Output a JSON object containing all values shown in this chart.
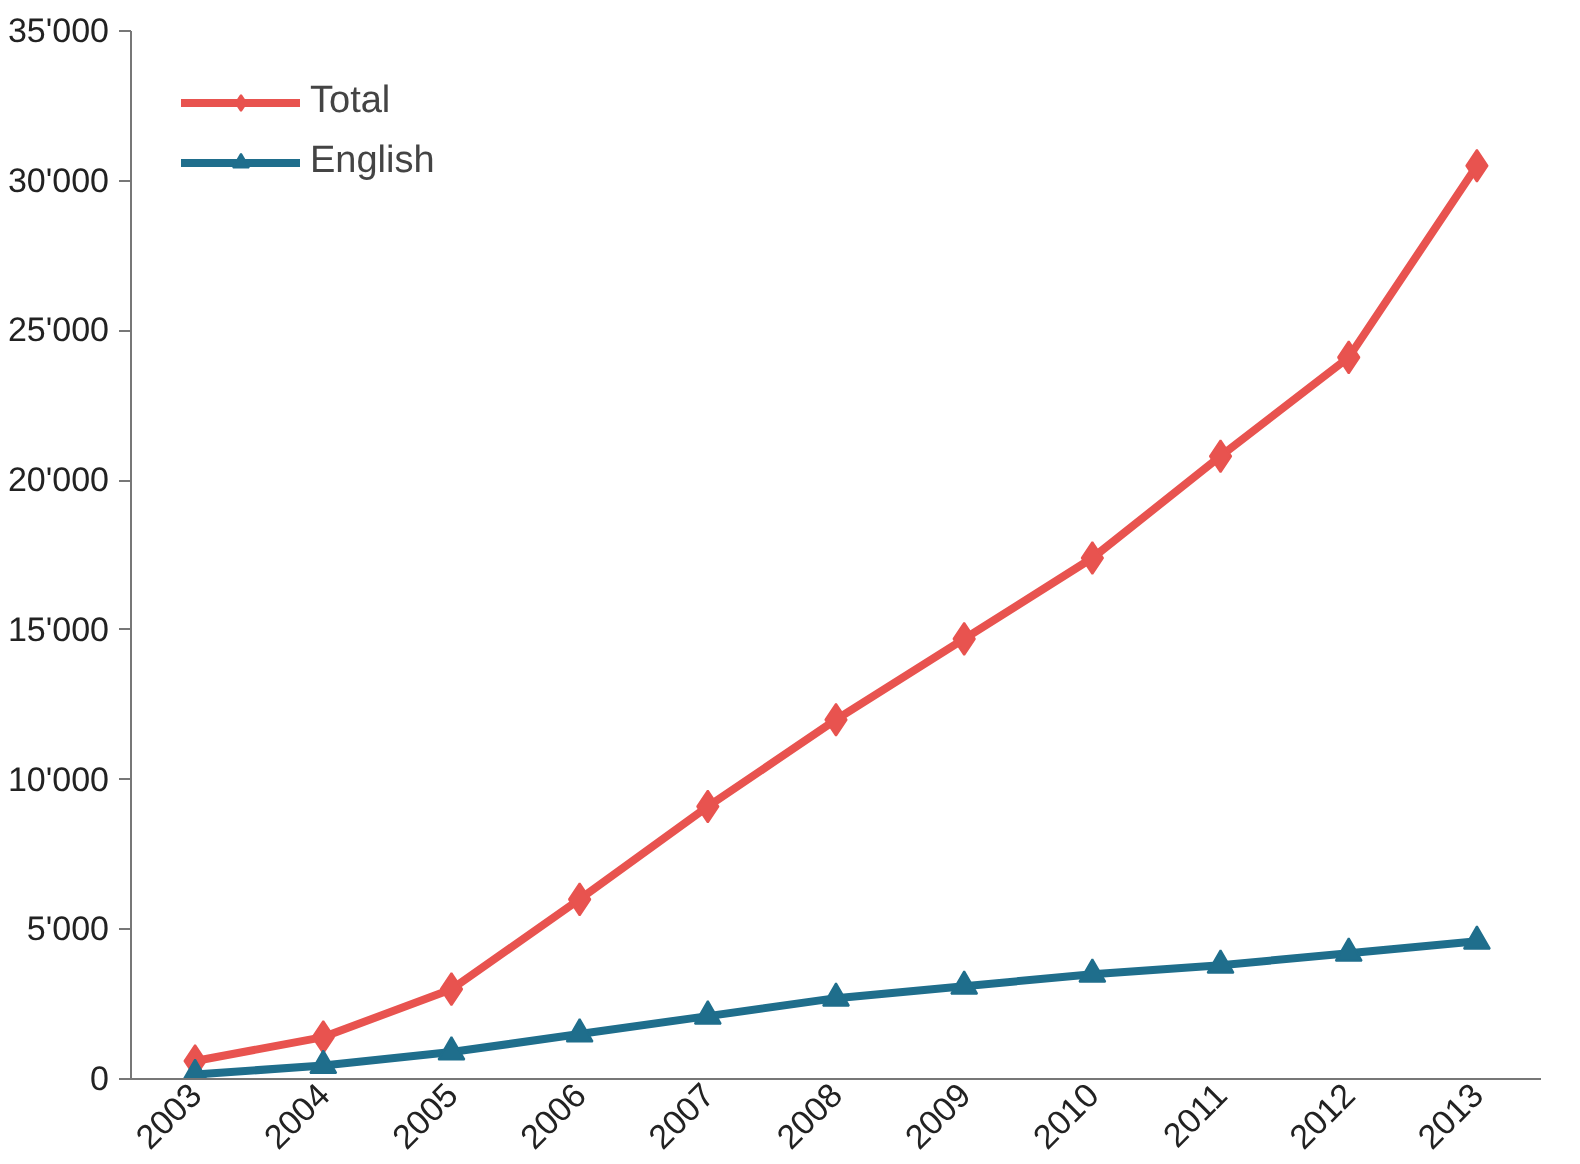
{
  "chart_data": {
    "type": "line",
    "categories": [
      "2003",
      "2004",
      "2005",
      "2006",
      "2007",
      "2008",
      "2009",
      "2010",
      "2011",
      "2012",
      "2013"
    ],
    "series": [
      {
        "name": "Total",
        "color": "#e8534f",
        "marker": "diamond",
        "values": [
          600,
          1400,
          3000,
          6000,
          9100,
          12000,
          14700,
          17400,
          20800,
          24100,
          30500
        ]
      },
      {
        "name": "English",
        "color": "#1f6e8c",
        "marker": "triangle",
        "values": [
          150,
          450,
          900,
          1500,
          2100,
          2700,
          3100,
          3500,
          3800,
          4200,
          4600
        ]
      }
    ],
    "ylim": [
      0,
      35000
    ],
    "yticks": [
      0,
      {
        "value": 5000,
        "label": "5'000"
      },
      {
        "value": 10000,
        "label": "10'000"
      },
      {
        "value": 15000,
        "label": "15'000"
      },
      {
        "value": 20000,
        "label": "20'000"
      },
      {
        "value": 25000,
        "label": "25'000"
      },
      {
        "value": 30000,
        "label": "30'000"
      },
      {
        "value": 35000,
        "label": "35'000"
      }
    ],
    "grid": false,
    "legend": "top left",
    "line_style": "solid"
  }
}
